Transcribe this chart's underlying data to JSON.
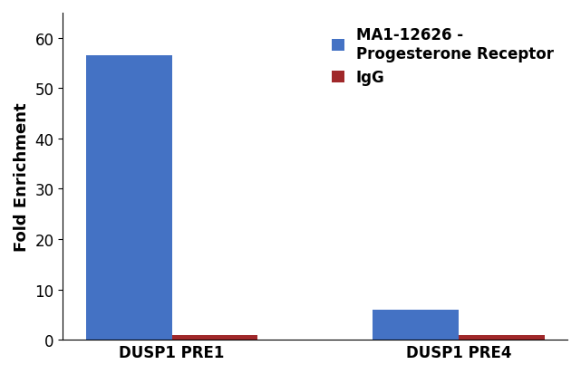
{
  "categories": [
    "DUSP1 PRE1",
    "DUSP1 PRE4"
  ],
  "series": [
    {
      "label": "MA1-12626 -\nProgesterone Receptor",
      "values": [
        56.5,
        6.0
      ],
      "color": "#4472C4"
    },
    {
      "label": "IgG",
      "values": [
        1.0,
        1.0
      ],
      "color": "#A0282A"
    }
  ],
  "ylabel": "Fold Enrichment",
  "ylim": [
    0,
    65
  ],
  "yticks": [
    0,
    10,
    20,
    30,
    40,
    50,
    60
  ],
  "bar_width": 0.3,
  "legend_fontsize": 12,
  "ylabel_fontsize": 13,
  "tick_fontsize": 12,
  "background_color": "#FFFFFF",
  "plot_background_color": "#FFFFFF"
}
